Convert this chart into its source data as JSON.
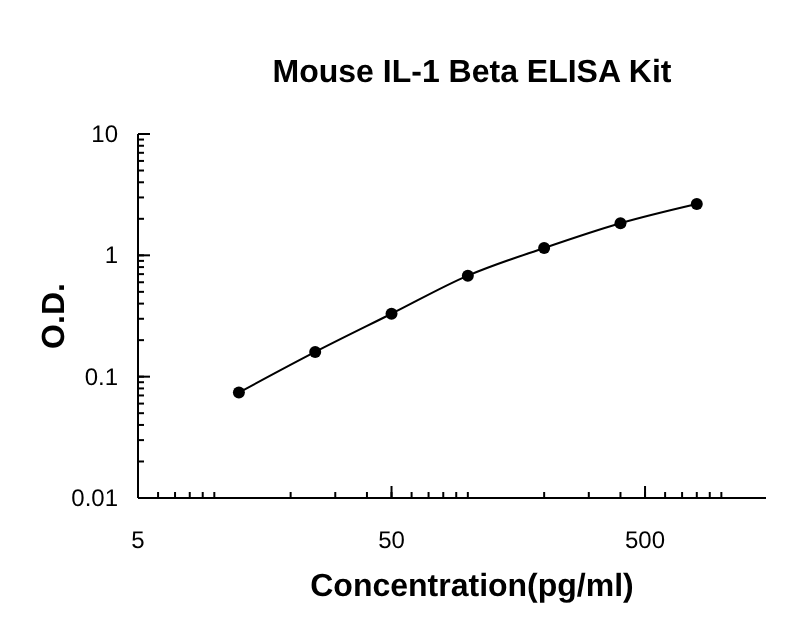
{
  "chart_data": {
    "type": "line",
    "title": "Mouse IL-1 Beta ELISA Kit",
    "xlabel": "Concentration(pg/ml)",
    "ylabel": "O.D.",
    "log": "xy",
    "x": [
      12.5,
      25,
      50,
      100,
      200,
      400,
      800
    ],
    "series": [
      {
        "color": "#000000",
        "values": [
          0.074,
          0.16,
          0.33,
          0.68,
          1.15,
          1.84,
          2.65
        ]
      }
    ],
    "xlim": [
      5,
      1500
    ],
    "xticks": [
      5,
      50,
      500
    ],
    "ylim": [
      0.01,
      10
    ],
    "yticks": [
      0.01,
      0.1,
      1,
      10
    ],
    "grid": false,
    "marker": "circle",
    "line_style": "solid"
  }
}
